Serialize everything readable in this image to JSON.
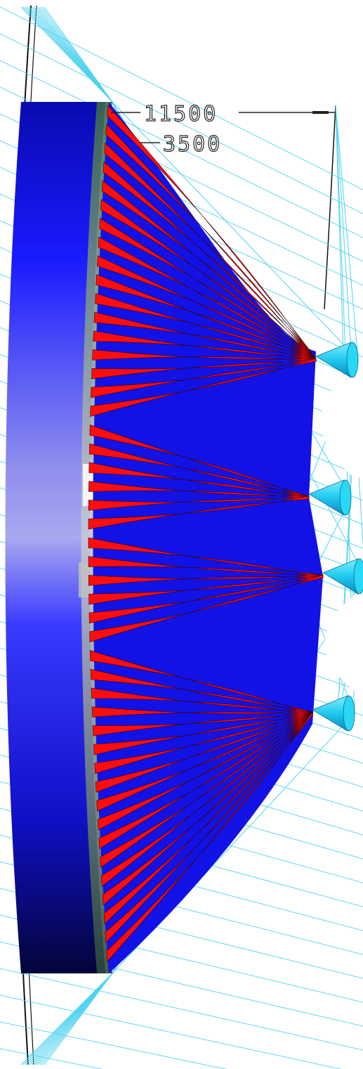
{
  "dimensions": {
    "outer": "11500",
    "inner": "3500"
  },
  "colors": {
    "drum_blue": "#1010ff",
    "drum_dark": "#05055a",
    "stripe_red": "#ff0d0d",
    "stripe_blue": "#1212e6",
    "cone_cyan": "#28d8f4",
    "cable_cyan": "#4fd3ef",
    "frame_black": "#111111"
  },
  "cones": {
    "count": 4
  }
}
